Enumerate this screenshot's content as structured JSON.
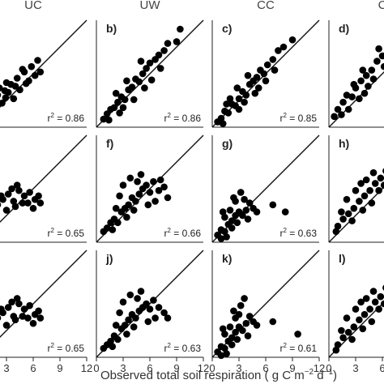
{
  "chart_data": {
    "type": "scatter",
    "layout": "3 rows x 4 columns (right edge cropped)",
    "x_axis": {
      "range": [
        0,
        12
      ],
      "ticks": [
        "0",
        "3",
        "6",
        "9",
        "12"
      ]
    },
    "y_axis": {
      "range": [
        0,
        12
      ]
    },
    "reference_line": "1:1",
    "columns": [
      "UC",
      "UW",
      "CC",
      "C"
    ],
    "x_label_parts": [
      "Observed total soil respiration ( g C m",
      "−2",
      " d",
      "−1",
      ")"
    ],
    "panels": [
      {
        "label": "",
        "col": 0,
        "row": 0,
        "r2": "0.86"
      },
      {
        "label": "b)",
        "col": 1,
        "row": 0,
        "r2": "0.86"
      },
      {
        "label": "c)",
        "col": 2,
        "row": 0,
        "r2": "0.85"
      },
      {
        "label": "d)",
        "col": 3,
        "row": 0,
        "r2": ""
      },
      {
        "label": "",
        "col": 0,
        "row": 1,
        "r2": "0.65"
      },
      {
        "label": "f)",
        "col": 1,
        "row": 1,
        "r2": "0.66"
      },
      {
        "label": "g)",
        "col": 2,
        "row": 1,
        "r2": "0.63"
      },
      {
        "label": "h)",
        "col": 3,
        "row": 1,
        "r2": ""
      },
      {
        "label": "",
        "col": 0,
        "row": 2,
        "r2": "0.65"
      },
      {
        "label": "j)",
        "col": 1,
        "row": 2,
        "r2": "0.63"
      },
      {
        "label": "k)",
        "col": 2,
        "row": 2,
        "r2": "0.61"
      },
      {
        "label": "l)",
        "col": 3,
        "row": 2,
        "r2": ""
      }
    ],
    "series_points": {
      "panel_a": [
        [
          1.2,
          3.2
        ],
        [
          2,
          3.6
        ],
        [
          2.8,
          4.1
        ],
        [
          3.5,
          4.8
        ],
        [
          4.2,
          5.5
        ],
        [
          5,
          6.2
        ],
        [
          5.8,
          6.8
        ],
        [
          6.5,
          7.5
        ],
        [
          3,
          5
        ],
        [
          2.5,
          2.7
        ],
        [
          1.8,
          1.6
        ],
        [
          4.5,
          4.2
        ],
        [
          5.5,
          5.2
        ],
        [
          6.2,
          5.8
        ],
        [
          3.8,
          3.2
        ],
        [
          4.8,
          6.5
        ],
        [
          2.2,
          4.4
        ],
        [
          0.8,
          1.5
        ],
        [
          6.8,
          6.2
        ],
        [
          3.2,
          3.9
        ],
        [
          4,
          4.6
        ],
        [
          5.2,
          4.9
        ],
        [
          1.5,
          2.2
        ],
        [
          2.9,
          3.3
        ]
      ],
      "panel_b": [
        [
          0.8,
          0.9
        ],
        [
          1.2,
          1.5
        ],
        [
          1.6,
          2
        ],
        [
          2,
          2.2
        ],
        [
          2.4,
          2.8
        ],
        [
          2.8,
          3.4
        ],
        [
          3.2,
          3.1
        ],
        [
          3.6,
          4.2
        ],
        [
          4,
          4.5
        ],
        [
          4.4,
          5.4
        ],
        [
          4.8,
          5.1
        ],
        [
          5.2,
          6
        ],
        [
          5.6,
          6.6
        ],
        [
          6,
          7.2
        ],
        [
          6.6,
          7.6
        ],
        [
          7,
          8.1
        ],
        [
          7.6,
          8.6
        ],
        [
          8,
          9.4
        ],
        [
          9,
          9.6
        ],
        [
          9.4,
          11
        ],
        [
          3,
          2.2
        ],
        [
          4.2,
          3.1
        ],
        [
          5.4,
          4.4
        ],
        [
          2.2,
          3.8
        ],
        [
          3.4,
          5.2
        ],
        [
          6.2,
          5.3
        ],
        [
          1.4,
          0.8
        ],
        [
          5,
          7.4
        ],
        [
          7.2,
          6.6
        ],
        [
          2.6,
          1.6
        ]
      ],
      "panel_c": [
        [
          0.6,
          0.6
        ],
        [
          1,
          1
        ],
        [
          1.4,
          1.8
        ],
        [
          1.8,
          1.6
        ],
        [
          2.2,
          2.6
        ],
        [
          2.6,
          2.4
        ],
        [
          3,
          3.2
        ],
        [
          3.4,
          4
        ],
        [
          3.8,
          3.6
        ],
        [
          4.2,
          4.8
        ],
        [
          4.6,
          5.2
        ],
        [
          5,
          5.6
        ],
        [
          5.4,
          6.4
        ],
        [
          5.8,
          6
        ],
        [
          6.2,
          7
        ],
        [
          6.8,
          7.6
        ],
        [
          7.4,
          8.6
        ],
        [
          8,
          9
        ],
        [
          9,
          9.8
        ],
        [
          2,
          3.2
        ],
        [
          3,
          2
        ],
        [
          4,
          5.8
        ],
        [
          4.8,
          3.8
        ],
        [
          3.6,
          2.8
        ],
        [
          1.6,
          2.6
        ],
        [
          6,
          5.2
        ],
        [
          2.8,
          4.4
        ],
        [
          1.2,
          0.4
        ],
        [
          7,
          6.4
        ],
        [
          5.2,
          4.4
        ]
      ],
      "panel_d": [
        [
          1,
          2
        ],
        [
          1.6,
          2.8
        ],
        [
          2,
          3.6
        ],
        [
          2.6,
          3.4
        ],
        [
          3,
          4.4
        ],
        [
          3.6,
          5.2
        ],
        [
          4.2,
          5.8
        ],
        [
          4.8,
          6.4
        ],
        [
          5.4,
          7.4
        ],
        [
          6,
          8
        ],
        [
          6.6,
          8.6
        ],
        [
          7.2,
          9.6
        ],
        [
          2.2,
          2
        ],
        [
          3.4,
          3.2
        ],
        [
          4.4,
          4.6
        ],
        [
          5,
          5.4
        ],
        [
          6.2,
          6.8
        ],
        [
          0.6,
          1.2
        ],
        [
          1.4,
          1.4
        ],
        [
          2.8,
          4.8
        ],
        [
          3.8,
          6.4
        ],
        [
          5.6,
          8.8
        ],
        [
          6.8,
          10.2
        ],
        [
          4,
          3.8
        ],
        [
          7,
          10.8
        ]
      ],
      "panel_e": [
        [
          1.2,
          3.8
        ],
        [
          2,
          4.2
        ],
        [
          2.6,
          4.8
        ],
        [
          3.2,
          5.4
        ],
        [
          3.8,
          4.6
        ],
        [
          4.4,
          5.8
        ],
        [
          5,
          5.2
        ],
        [
          5.6,
          5.6
        ],
        [
          6.2,
          4.8
        ],
        [
          6.8,
          4.4
        ],
        [
          3,
          3.6
        ],
        [
          4,
          4
        ],
        [
          4.8,
          4.4
        ],
        [
          2.4,
          5.2
        ],
        [
          3.6,
          6
        ],
        [
          5.4,
          4.4
        ],
        [
          6,
          3.8
        ],
        [
          1.6,
          4.6
        ],
        [
          4.2,
          6.4
        ],
        [
          6.6,
          5.2
        ]
      ],
      "panel_f": [
        [
          0.8,
          1.2
        ],
        [
          1.2,
          1.6
        ],
        [
          1.6,
          2.2
        ],
        [
          2,
          2.6
        ],
        [
          2.4,
          2.2
        ],
        [
          2.8,
          3.4
        ],
        [
          3.2,
          3.8
        ],
        [
          3.6,
          4.2
        ],
        [
          4,
          5
        ],
        [
          4.4,
          4.6
        ],
        [
          4.8,
          5.4
        ],
        [
          5.2,
          6
        ],
        [
          5.6,
          6.4
        ],
        [
          6,
          5.6
        ],
        [
          6.4,
          6.8
        ],
        [
          7,
          5.8
        ],
        [
          7.6,
          6.2
        ],
        [
          8,
          5
        ],
        [
          3,
          6.4
        ],
        [
          3.8,
          7.2
        ],
        [
          4.6,
          6.8
        ],
        [
          2.6,
          5.2
        ],
        [
          5,
          7.6
        ],
        [
          6.6,
          4.6
        ],
        [
          3.4,
          2.8
        ],
        [
          1.8,
          1.4
        ],
        [
          7.2,
          7
        ],
        [
          4.2,
          3.6
        ],
        [
          5.8,
          4.2
        ],
        [
          2.2,
          3.8
        ]
      ],
      "panel_g": [
        [
          0.6,
          0.8
        ],
        [
          1,
          1.4
        ],
        [
          1.4,
          1.2
        ],
        [
          1.8,
          2
        ],
        [
          2.2,
          2.4
        ],
        [
          2.6,
          3
        ],
        [
          3,
          3.4
        ],
        [
          3.4,
          3
        ],
        [
          3.8,
          3.6
        ],
        [
          4.2,
          4.4
        ],
        [
          4.6,
          3.8
        ],
        [
          5,
          3.4
        ],
        [
          1.4,
          2.8
        ],
        [
          2,
          3.6
        ],
        [
          2.6,
          4.6
        ],
        [
          1.2,
          3.4
        ],
        [
          3.2,
          5.6
        ],
        [
          2.4,
          5
        ],
        [
          6.8,
          4.2
        ],
        [
          8.2,
          3.4
        ],
        [
          1.6,
          0.6
        ],
        [
          3.6,
          4.8
        ],
        [
          2.8,
          2.2
        ],
        [
          4,
          2.6
        ],
        [
          1,
          0.4
        ],
        [
          2.2,
          1.6
        ]
      ],
      "panel_h": [
        [
          1,
          1.8
        ],
        [
          1.6,
          2.6
        ],
        [
          2.2,
          3.2
        ],
        [
          2.8,
          3.8
        ],
        [
          3.4,
          4.6
        ],
        [
          4,
          5.2
        ],
        [
          4.6,
          5.8
        ],
        [
          5.2,
          6.6
        ],
        [
          5.8,
          7.2
        ],
        [
          6.4,
          8
        ],
        [
          2,
          4.8
        ],
        [
          3,
          5.8
        ],
        [
          4.2,
          7
        ],
        [
          5,
          7.8
        ],
        [
          1.4,
          3.4
        ],
        [
          2.6,
          2.4
        ],
        [
          3.8,
          3.6
        ],
        [
          5.6,
          5.8
        ],
        [
          6.2,
          6.4
        ],
        [
          0.8,
          1.2
        ],
        [
          4.8,
          4.4
        ],
        [
          3.6,
          6.6
        ],
        [
          6.8,
          7.4
        ]
      ],
      "panel_i": [
        [
          1.2,
          3.8
        ],
        [
          2,
          4.4
        ],
        [
          2.6,
          5
        ],
        [
          3.2,
          5.6
        ],
        [
          3.8,
          4.6
        ],
        [
          4.4,
          6
        ],
        [
          5,
          5.4
        ],
        [
          5.6,
          5.8
        ],
        [
          6.2,
          4.8
        ],
        [
          6.8,
          4.4
        ],
        [
          3,
          3.6
        ],
        [
          4,
          4.2
        ],
        [
          4.8,
          4.6
        ],
        [
          2.4,
          5.4
        ],
        [
          3.6,
          6.2
        ],
        [
          5.4,
          4.4
        ],
        [
          6,
          3.8
        ],
        [
          1.6,
          4.8
        ],
        [
          4.2,
          6.6
        ],
        [
          6.6,
          5.2
        ]
      ],
      "panel_j": [
        [
          0.8,
          1
        ],
        [
          1.2,
          1.4
        ],
        [
          1.6,
          1.8
        ],
        [
          2,
          2.4
        ],
        [
          2.4,
          2
        ],
        [
          2.8,
          3.2
        ],
        [
          3.2,
          3.6
        ],
        [
          3.6,
          4.2
        ],
        [
          4,
          4.8
        ],
        [
          4.4,
          4.4
        ],
        [
          4.8,
          5.2
        ],
        [
          5.2,
          5.6
        ],
        [
          5.6,
          6
        ],
        [
          6,
          5.4
        ],
        [
          6.4,
          6.4
        ],
        [
          7,
          5.6
        ],
        [
          7.6,
          5
        ],
        [
          3,
          6.2
        ],
        [
          3.8,
          7
        ],
        [
          4.6,
          6.6
        ],
        [
          2.6,
          5
        ],
        [
          5,
          7.4
        ],
        [
          6.6,
          4.4
        ],
        [
          3.4,
          2.6
        ],
        [
          1.8,
          1.2
        ],
        [
          4.2,
          3.4
        ],
        [
          5.8,
          4
        ],
        [
          2.2,
          3.6
        ],
        [
          8,
          4.4
        ]
      ],
      "panel_k": [
        [
          0.6,
          0.6
        ],
        [
          1,
          1.2
        ],
        [
          1.4,
          1
        ],
        [
          1.8,
          1.8
        ],
        [
          2.2,
          2.2
        ],
        [
          2.6,
          2.8
        ],
        [
          3,
          3.4
        ],
        [
          3.4,
          3
        ],
        [
          3.8,
          3.8
        ],
        [
          4.2,
          4.6
        ],
        [
          4.6,
          4
        ],
        [
          5,
          3.6
        ],
        [
          1.4,
          2.6
        ],
        [
          2,
          3.4
        ],
        [
          2.6,
          4.4
        ],
        [
          1.2,
          3.2
        ],
        [
          3.2,
          5.8
        ],
        [
          2.4,
          5.2
        ],
        [
          3.6,
          6.6
        ],
        [
          6.8,
          4
        ],
        [
          9.6,
          2.6
        ],
        [
          1.6,
          0.4
        ],
        [
          2.8,
          2
        ],
        [
          4,
          2.4
        ],
        [
          1,
          0.2
        ],
        [
          2.2,
          1.4
        ],
        [
          3,
          4.8
        ]
      ],
      "panel_l": [
        [
          1,
          1.4
        ],
        [
          1.6,
          2.2
        ],
        [
          2.2,
          2.8
        ],
        [
          2.8,
          3.4
        ],
        [
          3.4,
          4.2
        ],
        [
          4,
          4.8
        ],
        [
          4.6,
          5.4
        ],
        [
          5.2,
          6.2
        ],
        [
          5.8,
          6.8
        ],
        [
          6.4,
          7.8
        ],
        [
          2,
          4.4
        ],
        [
          3,
          5.4
        ],
        [
          4.2,
          6.6
        ],
        [
          5,
          7.4
        ],
        [
          1.4,
          3
        ],
        [
          2.6,
          2
        ],
        [
          3.8,
          3.2
        ],
        [
          5.6,
          5.4
        ],
        [
          6.2,
          6
        ],
        [
          0.8,
          0.8
        ],
        [
          4.8,
          4
        ],
        [
          3.6,
          6.2
        ],
        [
          6.8,
          7.2
        ]
      ]
    }
  }
}
